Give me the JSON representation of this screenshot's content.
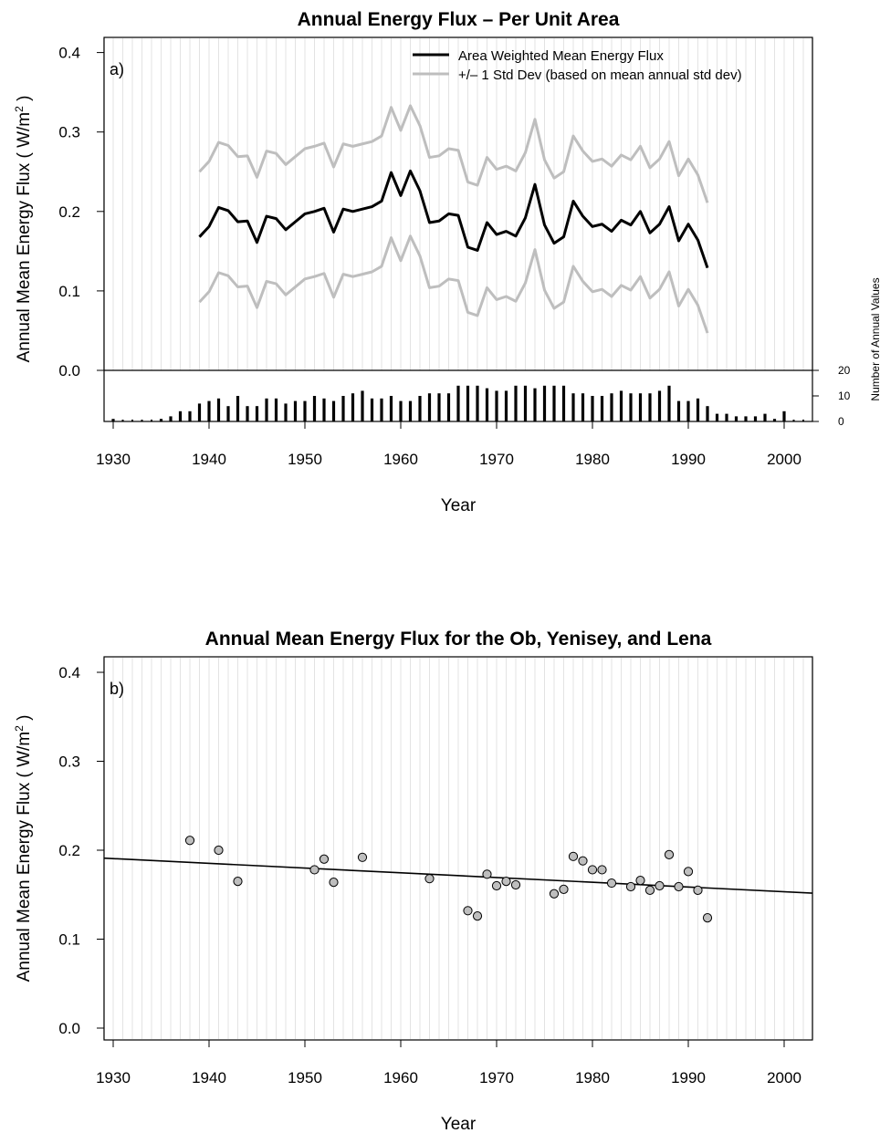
{
  "chart_data": [
    {
      "type": "line",
      "panel_label": "a)",
      "title": "Annual Energy Flux – Per Unit Area",
      "xlabel": "Year",
      "ylabel": "Annual Mean Energy Flux ( W/m",
      "ylabel_sup": "2",
      "ylabel_end": " )",
      "xlim": [
        1929,
        2003
      ],
      "ylim": [
        0.0,
        0.4
      ],
      "x_ticks": [
        "1930",
        "1940",
        "1950",
        "1960",
        "1970",
        "1980",
        "1990",
        "2000"
      ],
      "y_ticks": [
        "0.0",
        "0.1",
        "0.2",
        "0.3",
        "0.4"
      ],
      "grid": "vertical lines at every year",
      "legend_placement": "top-right",
      "x": [
        1939,
        1940,
        1941,
        1942,
        1943,
        1944,
        1945,
        1946,
        1947,
        1948,
        1949,
        1950,
        1951,
        1952,
        1953,
        1954,
        1955,
        1956,
        1957,
        1958,
        1959,
        1960,
        1961,
        1962,
        1963,
        1964,
        1965,
        1966,
        1967,
        1968,
        1969,
        1970,
        1971,
        1972,
        1973,
        1974,
        1975,
        1976,
        1977,
        1978,
        1979,
        1980,
        1981,
        1982,
        1983,
        1984,
        1985,
        1986,
        1987,
        1988,
        1989,
        1990,
        1991,
        1992
      ],
      "series": [
        {
          "name": "Area Weighted Mean Energy Flux",
          "color": "#000000",
          "values": [
            0.168,
            0.181,
            0.205,
            0.201,
            0.187,
            0.188,
            0.161,
            0.194,
            0.191,
            0.177,
            0.187,
            0.197,
            0.2,
            0.204,
            0.174,
            0.203,
            0.2,
            0.203,
            0.206,
            0.213,
            0.249,
            0.22,
            0.251,
            0.226,
            0.186,
            0.188,
            0.197,
            0.195,
            0.155,
            0.151,
            0.186,
            0.171,
            0.175,
            0.169,
            0.192,
            0.234,
            0.183,
            0.16,
            0.168,
            0.213,
            0.194,
            0.181,
            0.184,
            0.175,
            0.189,
            0.183,
            0.2,
            0.173,
            0.184,
            0.206,
            0.163,
            0.184,
            0.164,
            0.129
          ]
        },
        {
          "name": "+/– 1 Std Dev (based on mean annual std dev)",
          "color": "#bebebe",
          "upper": [
            0.25,
            0.263,
            0.287,
            0.283,
            0.269,
            0.27,
            0.243,
            0.276,
            0.273,
            0.259,
            0.269,
            0.279,
            0.282,
            0.286,
            0.256,
            0.285,
            0.282,
            0.285,
            0.288,
            0.295,
            0.331,
            0.302,
            0.333,
            0.308,
            0.268,
            0.27,
            0.279,
            0.277,
            0.237,
            0.233,
            0.268,
            0.253,
            0.257,
            0.251,
            0.274,
            0.316,
            0.265,
            0.242,
            0.25,
            0.295,
            0.276,
            0.263,
            0.266,
            0.257,
            0.271,
            0.265,
            0.282,
            0.255,
            0.266,
            0.288,
            0.245,
            0.266,
            0.246,
            0.211
          ],
          "lower": [
            0.086,
            0.099,
            0.123,
            0.119,
            0.105,
            0.106,
            0.079,
            0.112,
            0.109,
            0.095,
            0.105,
            0.115,
            0.118,
            0.122,
            0.092,
            0.121,
            0.118,
            0.121,
            0.124,
            0.131,
            0.167,
            0.138,
            0.169,
            0.144,
            0.104,
            0.106,
            0.115,
            0.113,
            0.073,
            0.069,
            0.104,
            0.089,
            0.093,
            0.087,
            0.11,
            0.152,
            0.101,
            0.078,
            0.086,
            0.131,
            0.112,
            0.099,
            0.102,
            0.093,
            0.107,
            0.101,
            0.118,
            0.091,
            0.102,
            0.124,
            0.081,
            0.102,
            0.082,
            0.047
          ]
        }
      ],
      "count_axis": {
        "label": "Number of Annual Values",
        "ticks": [
          "0",
          "10",
          "20"
        ],
        "ylim": [
          0,
          20
        ],
        "years": [
          1930,
          1931,
          1932,
          1933,
          1934,
          1935,
          1936,
          1937,
          1938,
          1939,
          1940,
          1941,
          1942,
          1943,
          1944,
          1945,
          1946,
          1947,
          1948,
          1949,
          1950,
          1951,
          1952,
          1953,
          1954,
          1955,
          1956,
          1957,
          1958,
          1959,
          1960,
          1961,
          1962,
          1963,
          1964,
          1965,
          1966,
          1967,
          1968,
          1969,
          1970,
          1971,
          1972,
          1973,
          1974,
          1975,
          1976,
          1977,
          1978,
          1979,
          1980,
          1981,
          1982,
          1983,
          1984,
          1985,
          1986,
          1987,
          1988,
          1989,
          1990,
          1991,
          1992,
          1993,
          1994,
          1995,
          1996,
          1997,
          1998,
          1999,
          2000,
          2001,
          2002
        ],
        "counts": [
          1,
          0,
          0,
          0,
          0,
          1,
          2,
          4,
          4,
          7,
          8,
          9,
          6,
          10,
          6,
          6,
          9,
          9,
          7,
          8,
          8,
          10,
          9,
          8,
          10,
          11,
          12,
          9,
          9,
          10,
          8,
          8,
          10,
          11,
          11,
          11,
          14,
          14,
          14,
          13,
          12,
          12,
          14,
          14,
          13,
          14,
          14,
          14,
          11,
          11,
          10,
          10,
          11,
          12,
          11,
          11,
          11,
          12,
          14,
          8,
          8,
          9,
          6,
          3,
          3,
          2,
          2,
          2,
          3,
          1,
          4,
          0,
          0
        ]
      }
    },
    {
      "type": "scatter",
      "panel_label": "b)",
      "title": "Annual Mean Energy Flux for the Ob, Yenisey, and Lena",
      "xlabel": "Year",
      "ylabel": "Annual Mean Energy Flux ( W/m",
      "ylabel_sup": "2",
      "ylabel_end": " )",
      "xlim": [
        1929,
        2003
      ],
      "ylim": [
        0.0,
        0.4
      ],
      "x_ticks": [
        "1930",
        "1940",
        "1950",
        "1960",
        "1970",
        "1980",
        "1990",
        "2000"
      ],
      "y_ticks": [
        "0.0",
        "0.1",
        "0.2",
        "0.3",
        "0.4"
      ],
      "grid": "vertical lines at every year",
      "point_color": "#bebebe",
      "points": {
        "x": [
          1938,
          1941,
          1943,
          1951,
          1952,
          1953,
          1956,
          1963,
          1967,
          1968,
          1969,
          1970,
          1971,
          1972,
          1976,
          1977,
          1978,
          1979,
          1980,
          1981,
          1982,
          1984,
          1985,
          1986,
          1987,
          1988,
          1989,
          1990,
          1991,
          1992
        ],
        "y": [
          0.211,
          0.2,
          0.165,
          0.178,
          0.19,
          0.164,
          0.192,
          0.168,
          0.132,
          0.126,
          0.173,
          0.16,
          0.165,
          0.161,
          0.151,
          0.156,
          0.193,
          0.188,
          0.178,
          0.178,
          0.163,
          0.159,
          0.166,
          0.155,
          0.16,
          0.195,
          0.159,
          0.176,
          0.155,
          0.124
        ]
      },
      "trend_line": {
        "x": [
          1929,
          2003
        ],
        "y": [
          0.1911,
          0.1517
        ]
      }
    }
  ]
}
